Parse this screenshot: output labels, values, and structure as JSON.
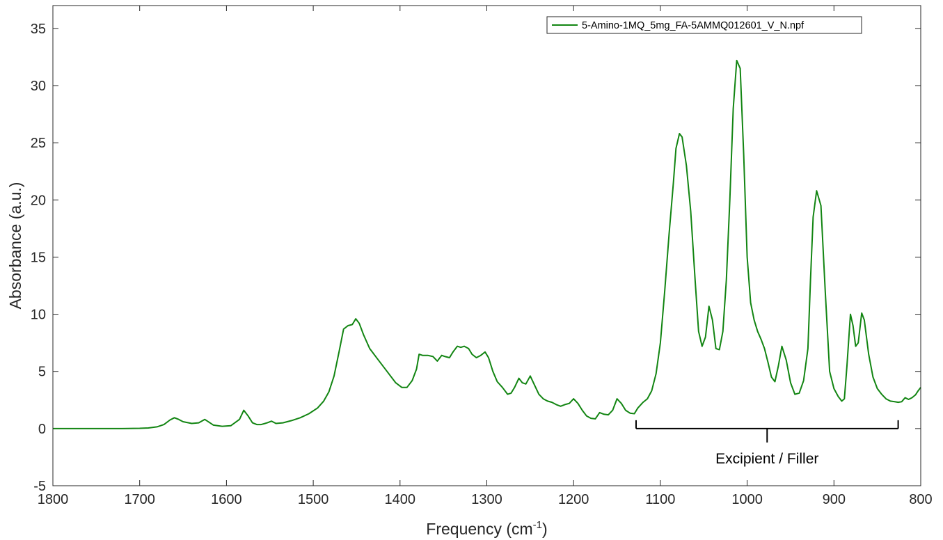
{
  "chart_data": {
    "type": "line",
    "xlabel": "Frequency (cm",
    "xlabel_superscript": "-1",
    "xlabel_suffix": ")",
    "ylabel": "Absorbance (a.u.)",
    "xlim": [
      1800,
      800
    ],
    "x_reversed": true,
    "ylim": [
      -5,
      37
    ],
    "xticks": [
      1800,
      1700,
      1600,
      1500,
      1400,
      1300,
      1200,
      1100,
      1000,
      900,
      800
    ],
    "yticks": [
      -5,
      0,
      5,
      10,
      15,
      20,
      25,
      30,
      35
    ],
    "grid": false,
    "legend_position": "top-right",
    "series": [
      {
        "name": "5-Amino-1MQ_5mg_FA-5AMMQ012601_V_N.npf",
        "color": "#128512",
        "x": [
          1800,
          1760,
          1720,
          1700,
          1690,
          1680,
          1672,
          1665,
          1660,
          1655,
          1650,
          1640,
          1632,
          1625,
          1620,
          1615,
          1605,
          1595,
          1585,
          1580,
          1575,
          1570,
          1565,
          1560,
          1553,
          1548,
          1543,
          1535,
          1525,
          1515,
          1505,
          1495,
          1488,
          1482,
          1476,
          1470,
          1465,
          1460,
          1455,
          1451,
          1447,
          1442,
          1435,
          1425,
          1415,
          1405,
          1398,
          1392,
          1386,
          1381,
          1378,
          1374,
          1368,
          1362,
          1357,
          1352,
          1348,
          1343,
          1339,
          1334,
          1330,
          1326,
          1321,
          1317,
          1312,
          1307,
          1302,
          1298,
          1293,
          1288,
          1282,
          1276,
          1272,
          1268,
          1263,
          1259,
          1255,
          1250,
          1245,
          1240,
          1235,
          1230,
          1225,
          1220,
          1215,
          1210,
          1205,
          1200,
          1195,
          1190,
          1185,
          1180,
          1175,
          1170,
          1165,
          1160,
          1155,
          1150,
          1145,
          1140,
          1135,
          1130,
          1126,
          1120,
          1115,
          1110,
          1105,
          1100,
          1095,
          1090,
          1085,
          1082,
          1078,
          1075,
          1070,
          1065,
          1060,
          1056,
          1052,
          1048,
          1044,
          1040,
          1036,
          1032,
          1028,
          1024,
          1020,
          1016,
          1012,
          1008,
          1004,
          1000,
          996,
          992,
          988,
          984,
          980,
          976,
          972,
          968,
          964,
          960,
          955,
          950,
          945,
          940,
          935,
          930,
          927,
          924,
          920,
          915,
          910,
          905,
          900,
          895,
          891,
          888,
          885,
          881,
          878,
          875,
          872,
          868,
          865,
          860,
          855,
          850,
          845,
          840,
          835,
          830,
          826,
          822,
          818,
          814,
          810,
          806,
          803,
          800
        ],
        "values": [
          0.0,
          0.0,
          0.0,
          0.02,
          0.05,
          0.15,
          0.35,
          0.75,
          0.95,
          0.8,
          0.6,
          0.45,
          0.5,
          0.8,
          0.55,
          0.3,
          0.2,
          0.25,
          0.8,
          1.6,
          1.1,
          0.5,
          0.35,
          0.35,
          0.5,
          0.65,
          0.45,
          0.5,
          0.7,
          0.95,
          1.3,
          1.8,
          2.4,
          3.2,
          4.6,
          6.8,
          8.7,
          9.0,
          9.1,
          9.6,
          9.2,
          8.2,
          7.0,
          6.0,
          5.0,
          4.0,
          3.6,
          3.6,
          4.2,
          5.2,
          6.5,
          6.4,
          6.4,
          6.3,
          5.9,
          6.4,
          6.3,
          6.2,
          6.7,
          7.2,
          7.1,
          7.2,
          7.0,
          6.5,
          6.2,
          6.4,
          6.7,
          6.2,
          5.0,
          4.1,
          3.6,
          3.0,
          3.1,
          3.6,
          4.4,
          4.0,
          3.9,
          4.6,
          3.8,
          3.0,
          2.6,
          2.4,
          2.3,
          2.1,
          1.95,
          2.1,
          2.2,
          2.6,
          2.2,
          1.6,
          1.1,
          0.9,
          0.85,
          1.4,
          1.25,
          1.2,
          1.6,
          2.6,
          2.2,
          1.6,
          1.35,
          1.3,
          1.8,
          2.3,
          2.6,
          3.3,
          4.8,
          7.5,
          12.0,
          17.0,
          21.5,
          24.5,
          25.8,
          25.5,
          23.0,
          19.0,
          13.0,
          8.5,
          7.2,
          8.0,
          10.7,
          9.5,
          7.0,
          6.9,
          8.5,
          13.0,
          20.0,
          28.0,
          32.2,
          31.5,
          24.0,
          15.0,
          11.0,
          9.5,
          8.5,
          7.8,
          7.0,
          5.8,
          4.5,
          4.1,
          5.5,
          7.2,
          6.0,
          4.0,
          3.0,
          3.1,
          4.2,
          7.0,
          13.0,
          18.5,
          20.8,
          19.5,
          12.0,
          5.0,
          3.5,
          2.8,
          2.4,
          2.6,
          5.5,
          10.0,
          9.0,
          7.2,
          7.5,
          10.1,
          9.5,
          6.5,
          4.5,
          3.5,
          3.0,
          2.6,
          2.4,
          2.35,
          2.3,
          2.35,
          2.7,
          2.55,
          2.7,
          2.95,
          3.3,
          3.6
        ]
      }
    ],
    "annotations": [
      {
        "type": "bracket",
        "x_from": 1128,
        "x_to": 826,
        "y": 0,
        "label": "Excipient / Filler"
      }
    ]
  }
}
